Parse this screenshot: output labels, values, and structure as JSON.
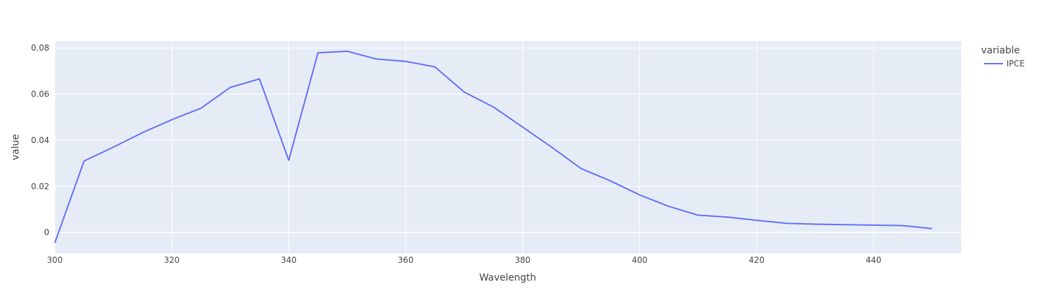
{
  "chart_data": {
    "type": "line",
    "xlabel": "Wavelength",
    "ylabel": "value",
    "xlim": [
      300,
      455
    ],
    "ylim": [
      -0.009,
      0.083
    ],
    "x_ticks": [
      300,
      320,
      340,
      360,
      380,
      400,
      420,
      440
    ],
    "x_tick_labels": [
      "300",
      "320",
      "340",
      "360",
      "380",
      "400",
      "420",
      "440"
    ],
    "y_ticks": [
      0,
      0.02,
      0.04,
      0.06,
      0.08
    ],
    "y_tick_labels": [
      "0",
      "0.02",
      "0.04",
      "0.06",
      "0.08"
    ],
    "grid": true,
    "legend": {
      "title": "variable",
      "placement": "right"
    },
    "series": [
      {
        "name": "IPCE",
        "color": "#636efa",
        "x": [
          300,
          305,
          310,
          315,
          320,
          325,
          330,
          335,
          340,
          345,
          350,
          355,
          360,
          365,
          370,
          375,
          380,
          385,
          390,
          395,
          400,
          405,
          410,
          415,
          420,
          425,
          430,
          435,
          440,
          445,
          450
        ],
        "y": [
          -0.0045,
          0.031,
          0.037,
          0.0433,
          0.0489,
          0.0539,
          0.0629,
          0.0666,
          0.0313,
          0.0779,
          0.0786,
          0.0752,
          0.0742,
          0.0718,
          0.0609,
          0.0544,
          0.0457,
          0.0369,
          0.0277,
          0.0224,
          0.0163,
          0.0113,
          0.0075,
          0.0067,
          0.0053,
          0.004,
          0.0036,
          0.0034,
          0.0032,
          0.003,
          0.0017
        ]
      }
    ]
  },
  "colors": {
    "plot_background": "#e5ecf6",
    "grid": "#ffffff",
    "zero_line": "#ffffff"
  }
}
